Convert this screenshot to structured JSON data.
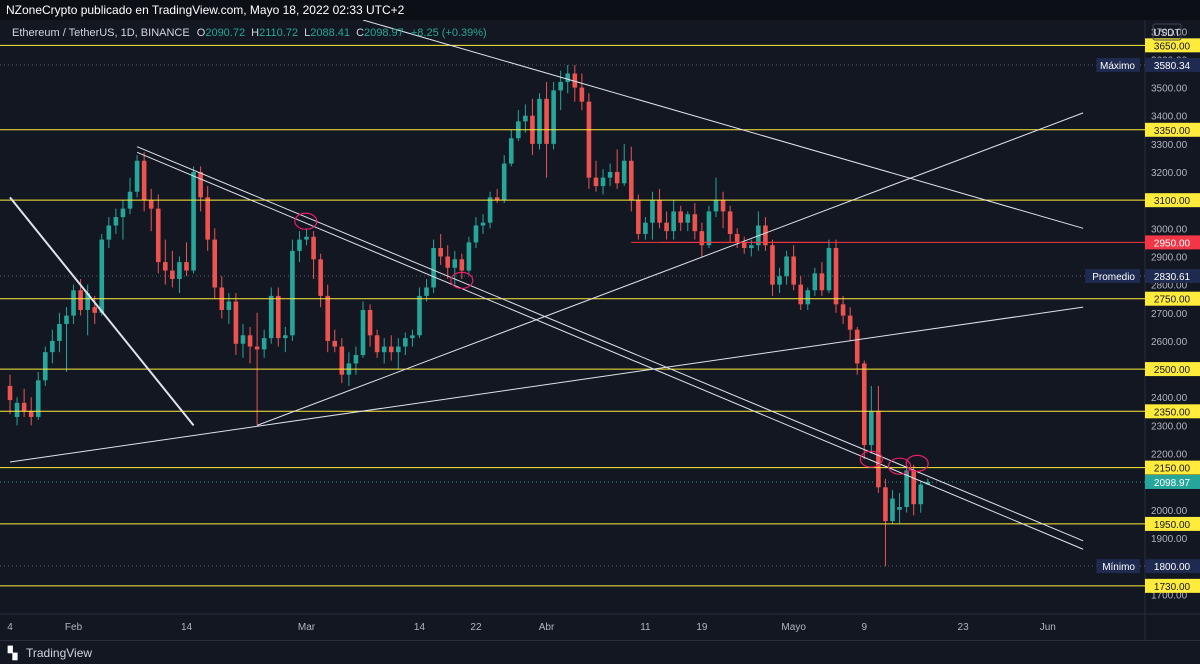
{
  "header": {
    "attribution": "NZoneCrypto publicado en TradingView.com, Mayo 18, 2022 02:33 UTC+2",
    "symbol": "Ethereum / TetherUS, 1D, BINANCE",
    "ohlc": [
      {
        "label": "O",
        "value": "2090.72"
      },
      {
        "label": "H",
        "value": "2110.72"
      },
      {
        "label": "L",
        "value": "2088.41"
      },
      {
        "label": "C",
        "value": "2098.97"
      }
    ],
    "change": "+8.25 (+0.39%)"
  },
  "currency": "USDT",
  "footer": {
    "brand": "TradingView",
    "logo_icon": "tradingview-logo-icon"
  },
  "colors": {
    "up": "#26a69a",
    "down": "#ef5350",
    "level": "#ffeb3b",
    "resistance": "#f23645",
    "trendline": "#e0e3eb",
    "circle": "#e91e63",
    "background": "#131722"
  },
  "chart_data": {
    "type": "candlestick",
    "ylim": [
      1630,
      3740
    ],
    "xlim": [
      0,
      158
    ],
    "y_ticks": [
      1700,
      1800,
      1900,
      2000,
      2100,
      2200,
      2300,
      2400,
      2500,
      2600,
      2700,
      2800,
      2900,
      3000,
      3100,
      3200,
      3300,
      3400,
      3500,
      3600,
      3700
    ],
    "x_ticks": [
      {
        "x": 0,
        "label": "4"
      },
      {
        "x": 9,
        "label": "Feb"
      },
      {
        "x": 25,
        "label": "14"
      },
      {
        "x": 42,
        "label": "Mar"
      },
      {
        "x": 58,
        "label": "14"
      },
      {
        "x": 66,
        "label": "22"
      },
      {
        "x": 76,
        "label": "Abr"
      },
      {
        "x": 90,
        "label": "11"
      },
      {
        "x": 98,
        "label": "19"
      },
      {
        "x": 111,
        "label": "Mayo"
      },
      {
        "x": 121,
        "label": "9"
      },
      {
        "x": 135,
        "label": "23"
      },
      {
        "x": 147,
        "label": "Jun"
      }
    ],
    "levels": [
      {
        "value": 3650,
        "label": "3650.00",
        "kind": "support"
      },
      {
        "value": 3350,
        "label": "3350.00",
        "kind": "support"
      },
      {
        "value": 3100,
        "label": "3100.00",
        "kind": "support"
      },
      {
        "value": 2950,
        "label": "2950.00",
        "kind": "resistance"
      },
      {
        "value": 2750,
        "label": "2750.00",
        "kind": "support"
      },
      {
        "value": 2500,
        "label": "2500.00",
        "kind": "support"
      },
      {
        "value": 2350,
        "label": "2350.00",
        "kind": "support"
      },
      {
        "value": 2150,
        "label": "2150.00",
        "kind": "support"
      },
      {
        "value": 1950,
        "label": "1950.00",
        "kind": "support"
      },
      {
        "value": 1730,
        "label": "1730.00",
        "kind": "support"
      }
    ],
    "markers": [
      {
        "value": 3580.34,
        "name": "Máximo",
        "label": "3580.34"
      },
      {
        "value": 2830.61,
        "name": "Promedio",
        "label": "2830.61"
      },
      {
        "value": 1800.0,
        "name": "Mínimo",
        "label": "1800.00"
      }
    ],
    "last_price": {
      "value": 2098.97,
      "label": "2098.97"
    },
    "trendlines": [
      {
        "from": [
          0,
          3110
        ],
        "to": [
          26,
          2300
        ]
      },
      {
        "from": [
          0,
          2170
        ],
        "to": [
          152,
          2720
        ]
      },
      {
        "from": [
          35,
          2300
        ],
        "to": [
          152,
          3410
        ]
      },
      {
        "from": [
          50,
          3740
        ],
        "to": [
          152,
          3000
        ]
      },
      {
        "from": [
          18,
          3290
        ],
        "to": [
          152,
          1890
        ]
      },
      {
        "from": [
          18,
          3270
        ],
        "to": [
          152,
          1860
        ]
      },
      {
        "from": [
          88,
          2950
        ],
        "to": [
          116,
          2950
        ]
      }
    ],
    "circles": [
      {
        "x": 41.9,
        "y": 3025
      },
      {
        "x": 64,
        "y": 2815
      },
      {
        "x": 122,
        "y": 2180
      },
      {
        "x": 126,
        "y": 2155
      },
      {
        "x": 128.5,
        "y": 2165
      }
    ],
    "candles": [
      {
        "x": 0,
        "o": 2440,
        "h": 2480,
        "l": 2340,
        "c": 2390
      },
      {
        "x": 1,
        "o": 2330,
        "h": 2400,
        "l": 2300,
        "c": 2380
      },
      {
        "x": 2,
        "o": 2380,
        "h": 2430,
        "l": 2330,
        "c": 2350
      },
      {
        "x": 3,
        "o": 2350,
        "h": 2400,
        "l": 2300,
        "c": 2330
      },
      {
        "x": 4,
        "o": 2330,
        "h": 2490,
        "l": 2320,
        "c": 2460
      },
      {
        "x": 5,
        "o": 2460,
        "h": 2580,
        "l": 2440,
        "c": 2560
      },
      {
        "x": 6,
        "o": 2560,
        "h": 2640,
        "l": 2520,
        "c": 2600
      },
      {
        "x": 7,
        "o": 2600,
        "h": 2700,
        "l": 2560,
        "c": 2660
      },
      {
        "x": 8,
        "o": 2660,
        "h": 2720,
        "l": 2490,
        "c": 2690
      },
      {
        "x": 9,
        "o": 2690,
        "h": 2800,
        "l": 2660,
        "c": 2780
      },
      {
        "x": 10,
        "o": 2780,
        "h": 2820,
        "l": 2690,
        "c": 2710
      },
      {
        "x": 11,
        "o": 2710,
        "h": 2800,
        "l": 2620,
        "c": 2770
      },
      {
        "x": 12,
        "o": 2720,
        "h": 2760,
        "l": 2660,
        "c": 2700
      },
      {
        "x": 13,
        "o": 2700,
        "h": 2980,
        "l": 2690,
        "c": 2960
      },
      {
        "x": 14,
        "o": 2960,
        "h": 3040,
        "l": 2930,
        "c": 3010
      },
      {
        "x": 15,
        "o": 3010,
        "h": 3070,
        "l": 2980,
        "c": 3040
      },
      {
        "x": 16,
        "o": 3040,
        "h": 3100,
        "l": 2960,
        "c": 3070
      },
      {
        "x": 17,
        "o": 3070,
        "h": 3180,
        "l": 3050,
        "c": 3130
      },
      {
        "x": 18,
        "o": 3130,
        "h": 3260,
        "l": 3110,
        "c": 3240
      },
      {
        "x": 19,
        "o": 3240,
        "h": 3270,
        "l": 3060,
        "c": 3100
      },
      {
        "x": 20,
        "o": 3100,
        "h": 3140,
        "l": 2990,
        "c": 3070
      },
      {
        "x": 21,
        "o": 3070,
        "h": 3120,
        "l": 2840,
        "c": 2880
      },
      {
        "x": 22,
        "o": 2880,
        "h": 2960,
        "l": 2800,
        "c": 2850
      },
      {
        "x": 23,
        "o": 2850,
        "h": 2920,
        "l": 2790,
        "c": 2820
      },
      {
        "x": 24,
        "o": 2820,
        "h": 2900,
        "l": 2770,
        "c": 2880
      },
      {
        "x": 25,
        "o": 2880,
        "h": 2950,
        "l": 2830,
        "c": 2850
      },
      {
        "x": 26,
        "o": 2850,
        "h": 3220,
        "l": 2840,
        "c": 3200
      },
      {
        "x": 27,
        "o": 3200,
        "h": 3220,
        "l": 3060,
        "c": 3110
      },
      {
        "x": 28,
        "o": 3110,
        "h": 3150,
        "l": 2920,
        "c": 2960
      },
      {
        "x": 29,
        "o": 2960,
        "h": 3000,
        "l": 2750,
        "c": 2790
      },
      {
        "x": 30,
        "o": 2790,
        "h": 2830,
        "l": 2680,
        "c": 2710
      },
      {
        "x": 31,
        "o": 2710,
        "h": 2770,
        "l": 2660,
        "c": 2740
      },
      {
        "x": 32,
        "o": 2740,
        "h": 2770,
        "l": 2550,
        "c": 2590
      },
      {
        "x": 33,
        "o": 2590,
        "h": 2660,
        "l": 2540,
        "c": 2620
      },
      {
        "x": 34,
        "o": 2620,
        "h": 2650,
        "l": 2520,
        "c": 2580
      },
      {
        "x": 35,
        "o": 2580,
        "h": 2700,
        "l": 2300,
        "c": 2570
      },
      {
        "x": 36,
        "o": 2570,
        "h": 2640,
        "l": 2540,
        "c": 2610
      },
      {
        "x": 37,
        "o": 2610,
        "h": 2790,
        "l": 2590,
        "c": 2760
      },
      {
        "x": 38,
        "o": 2760,
        "h": 2790,
        "l": 2580,
        "c": 2610
      },
      {
        "x": 39,
        "o": 2610,
        "h": 2650,
        "l": 2560,
        "c": 2620
      },
      {
        "x": 40,
        "o": 2620,
        "h": 2960,
        "l": 2600,
        "c": 2920
      },
      {
        "x": 41,
        "o": 2920,
        "h": 2990,
        "l": 2880,
        "c": 2960
      },
      {
        "x": 42,
        "o": 2960,
        "h": 3000,
        "l": 2940,
        "c": 2970
      },
      {
        "x": 43,
        "o": 2970,
        "h": 2990,
        "l": 2820,
        "c": 2890
      },
      {
        "x": 44,
        "o": 2890,
        "h": 2910,
        "l": 2720,
        "c": 2760
      },
      {
        "x": 45,
        "o": 2760,
        "h": 2800,
        "l": 2560,
        "c": 2600
      },
      {
        "x": 46,
        "o": 2600,
        "h": 2640,
        "l": 2560,
        "c": 2580
      },
      {
        "x": 47,
        "o": 2580,
        "h": 2610,
        "l": 2450,
        "c": 2480
      },
      {
        "x": 48,
        "o": 2480,
        "h": 2560,
        "l": 2440,
        "c": 2520
      },
      {
        "x": 49,
        "o": 2520,
        "h": 2580,
        "l": 2480,
        "c": 2550
      },
      {
        "x": 50,
        "o": 2550,
        "h": 2740,
        "l": 2540,
        "c": 2710
      },
      {
        "x": 51,
        "o": 2710,
        "h": 2730,
        "l": 2580,
        "c": 2620
      },
      {
        "x": 52,
        "o": 2620,
        "h": 2640,
        "l": 2540,
        "c": 2560
      },
      {
        "x": 53,
        "o": 2560,
        "h": 2610,
        "l": 2520,
        "c": 2580
      },
      {
        "x": 54,
        "o": 2580,
        "h": 2620,
        "l": 2530,
        "c": 2560
      },
      {
        "x": 55,
        "o": 2560,
        "h": 2610,
        "l": 2500,
        "c": 2580
      },
      {
        "x": 56,
        "o": 2580,
        "h": 2630,
        "l": 2550,
        "c": 2610
      },
      {
        "x": 57,
        "o": 2610,
        "h": 2640,
        "l": 2580,
        "c": 2620
      },
      {
        "x": 58,
        "o": 2620,
        "h": 2790,
        "l": 2610,
        "c": 2760
      },
      {
        "x": 59,
        "o": 2760,
        "h": 2820,
        "l": 2740,
        "c": 2790
      },
      {
        "x": 60,
        "o": 2790,
        "h": 2960,
        "l": 2770,
        "c": 2930
      },
      {
        "x": 61,
        "o": 2930,
        "h": 2980,
        "l": 2870,
        "c": 2900
      },
      {
        "x": 62,
        "o": 2900,
        "h": 2940,
        "l": 2820,
        "c": 2860
      },
      {
        "x": 63,
        "o": 2860,
        "h": 2920,
        "l": 2800,
        "c": 2890
      },
      {
        "x": 64,
        "o": 2890,
        "h": 2910,
        "l": 2820,
        "c": 2850
      },
      {
        "x": 65,
        "o": 2850,
        "h": 2970,
        "l": 2840,
        "c": 2950
      },
      {
        "x": 66,
        "o": 2950,
        "h": 3040,
        "l": 2930,
        "c": 3010
      },
      {
        "x": 67,
        "o": 3010,
        "h": 3050,
        "l": 2980,
        "c": 3020
      },
      {
        "x": 68,
        "o": 3020,
        "h": 3130,
        "l": 3000,
        "c": 3110
      },
      {
        "x": 69,
        "o": 3110,
        "h": 3140,
        "l": 3090,
        "c": 3100
      },
      {
        "x": 70,
        "o": 3100,
        "h": 3260,
        "l": 3090,
        "c": 3230
      },
      {
        "x": 71,
        "o": 3230,
        "h": 3350,
        "l": 3220,
        "c": 3320
      },
      {
        "x": 72,
        "o": 3320,
        "h": 3420,
        "l": 3310,
        "c": 3380
      },
      {
        "x": 73,
        "o": 3380,
        "h": 3440,
        "l": 3340,
        "c": 3400
      },
      {
        "x": 74,
        "o": 3400,
        "h": 3460,
        "l": 3260,
        "c": 3300
      },
      {
        "x": 75,
        "o": 3300,
        "h": 3480,
        "l": 3280,
        "c": 3460
      },
      {
        "x": 76,
        "o": 3460,
        "h": 3520,
        "l": 3180,
        "c": 3300
      },
      {
        "x": 77,
        "o": 3300,
        "h": 3520,
        "l": 3280,
        "c": 3490
      },
      {
        "x": 78,
        "o": 3490,
        "h": 3560,
        "l": 3420,
        "c": 3520
      },
      {
        "x": 79,
        "o": 3520,
        "h": 3580,
        "l": 3480,
        "c": 3550
      },
      {
        "x": 80,
        "o": 3550,
        "h": 3580,
        "l": 3450,
        "c": 3500
      },
      {
        "x": 81,
        "o": 3500,
        "h": 3550,
        "l": 3420,
        "c": 3450
      },
      {
        "x": 82,
        "o": 3450,
        "h": 3480,
        "l": 3140,
        "c": 3180
      },
      {
        "x": 83,
        "o": 3180,
        "h": 3240,
        "l": 3130,
        "c": 3150
      },
      {
        "x": 84,
        "o": 3150,
        "h": 3210,
        "l": 3120,
        "c": 3180
      },
      {
        "x": 85,
        "o": 3180,
        "h": 3230,
        "l": 3150,
        "c": 3200
      },
      {
        "x": 86,
        "o": 3200,
        "h": 3280,
        "l": 3140,
        "c": 3160
      },
      {
        "x": 87,
        "o": 3160,
        "h": 3300,
        "l": 3150,
        "c": 3240
      },
      {
        "x": 88,
        "o": 3240,
        "h": 3290,
        "l": 3060,
        "c": 3100
      },
      {
        "x": 89,
        "o": 3100,
        "h": 3120,
        "l": 2960,
        "c": 2980
      },
      {
        "x": 90,
        "o": 2980,
        "h": 3040,
        "l": 2960,
        "c": 3020
      },
      {
        "x": 91,
        "o": 3020,
        "h": 3130,
        "l": 2960,
        "c": 3100
      },
      {
        "x": 92,
        "o": 3100,
        "h": 3140,
        "l": 3000,
        "c": 3020
      },
      {
        "x": 93,
        "o": 3020,
        "h": 3060,
        "l": 2960,
        "c": 2990
      },
      {
        "x": 94,
        "o": 2990,
        "h": 3100,
        "l": 2960,
        "c": 3060
      },
      {
        "x": 95,
        "o": 3060,
        "h": 3080,
        "l": 2990,
        "c": 3020
      },
      {
        "x": 96,
        "o": 3020,
        "h": 3060,
        "l": 2990,
        "c": 3050
      },
      {
        "x": 97,
        "o": 3050,
        "h": 3090,
        "l": 2960,
        "c": 2990
      },
      {
        "x": 98,
        "o": 2990,
        "h": 3020,
        "l": 2900,
        "c": 2940
      },
      {
        "x": 99,
        "o": 2940,
        "h": 3080,
        "l": 2930,
        "c": 3060
      },
      {
        "x": 100,
        "o": 3060,
        "h": 3180,
        "l": 3040,
        "c": 3100
      },
      {
        "x": 101,
        "o": 3100,
        "h": 3130,
        "l": 3000,
        "c": 3060
      },
      {
        "x": 102,
        "o": 3060,
        "h": 3080,
        "l": 2950,
        "c": 2980
      },
      {
        "x": 103,
        "o": 2980,
        "h": 3000,
        "l": 2930,
        "c": 2950
      },
      {
        "x": 104,
        "o": 2950,
        "h": 2970,
        "l": 2910,
        "c": 2930
      },
      {
        "x": 105,
        "o": 2930,
        "h": 2960,
        "l": 2900,
        "c": 2940
      },
      {
        "x": 106,
        "o": 2940,
        "h": 3060,
        "l": 2920,
        "c": 3010
      },
      {
        "x": 107,
        "o": 3010,
        "h": 3040,
        "l": 2920,
        "c": 2940
      },
      {
        "x": 108,
        "o": 2940,
        "h": 2960,
        "l": 2760,
        "c": 2800
      },
      {
        "x": 109,
        "o": 2800,
        "h": 2860,
        "l": 2770,
        "c": 2830
      },
      {
        "x": 110,
        "o": 2830,
        "h": 2920,
        "l": 2800,
        "c": 2900
      },
      {
        "x": 111,
        "o": 2900,
        "h": 2940,
        "l": 2780,
        "c": 2800
      },
      {
        "x": 112,
        "o": 2800,
        "h": 2830,
        "l": 2710,
        "c": 2730
      },
      {
        "x": 113,
        "o": 2730,
        "h": 2790,
        "l": 2710,
        "c": 2780
      },
      {
        "x": 114,
        "o": 2780,
        "h": 2860,
        "l": 2760,
        "c": 2840
      },
      {
        "x": 115,
        "o": 2840,
        "h": 2880,
        "l": 2760,
        "c": 2780
      },
      {
        "x": 116,
        "o": 2780,
        "h": 2960,
        "l": 2770,
        "c": 2930
      },
      {
        "x": 117,
        "o": 2930,
        "h": 2960,
        "l": 2700,
        "c": 2730
      },
      {
        "x": 118,
        "o": 2730,
        "h": 2760,
        "l": 2660,
        "c": 2690
      },
      {
        "x": 119,
        "o": 2690,
        "h": 2720,
        "l": 2600,
        "c": 2640
      },
      {
        "x": 120,
        "o": 2640,
        "h": 2650,
        "l": 2480,
        "c": 2520
      },
      {
        "x": 121,
        "o": 2520,
        "h": 2530,
        "l": 2180,
        "c": 2230
      },
      {
        "x": 122,
        "o": 2230,
        "h": 2440,
        "l": 2200,
        "c": 2350
      },
      {
        "x": 123,
        "o": 2350,
        "h": 2440,
        "l": 2060,
        "c": 2080
      },
      {
        "x": 124,
        "o": 2080,
        "h": 2110,
        "l": 1800,
        "c": 1960
      },
      {
        "x": 125,
        "o": 1960,
        "h": 2070,
        "l": 1950,
        "c": 2040
      },
      {
        "x": 126,
        "o": 2000,
        "h": 2060,
        "l": 1950,
        "c": 2010
      },
      {
        "x": 127,
        "o": 2010,
        "h": 2150,
        "l": 1990,
        "c": 2140
      },
      {
        "x": 128,
        "o": 2140,
        "h": 2160,
        "l": 1980,
        "c": 2020
      },
      {
        "x": 129,
        "o": 2020,
        "h": 2100,
        "l": 1990,
        "c": 2090
      },
      {
        "x": 130,
        "o": 2090.72,
        "h": 2110.72,
        "l": 2088.41,
        "c": 2098.97
      }
    ]
  }
}
